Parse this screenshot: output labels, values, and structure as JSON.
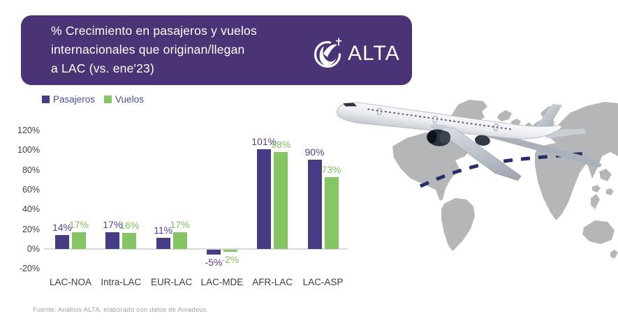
{
  "header": {
    "title_lines": [
      "% Crecimiento en pasajeros y vuelos",
      "internacionales que originan/llegan",
      "a LAC (vs. ene'23)"
    ],
    "logo_text": "ALTA"
  },
  "legend": [
    {
      "label": "Pasajeros",
      "color": "#453c85"
    },
    {
      "label": "Vuelos",
      "color": "#84c664"
    }
  ],
  "chart_data": {
    "type": "bar",
    "title": "% Crecimiento en pasajeros y vuelos internacionales que originan/llegan a LAC (vs. ene'23)",
    "categories": [
      "LAC-NOA",
      "Intra-LAC",
      "EUR-LAC",
      "LAC-MDE",
      "AFR-LAC",
      "LAC-ASP"
    ],
    "series": [
      {
        "name": "Pasajeros",
        "color": "#453c85",
        "label_color": "#5c3d99",
        "values": [
          14,
          17,
          11,
          -5,
          101,
          90
        ]
      },
      {
        "name": "Vuelos",
        "color": "#84c664",
        "label_color": "#7cc05b",
        "values": [
          17,
          16,
          17,
          -2,
          98,
          73
        ]
      }
    ],
    "yticks": [
      120,
      100,
      80,
      60,
      40,
      20,
      0,
      -20
    ],
    "ylim": [
      -20,
      120
    ],
    "ytick_format": "{v}%",
    "value_label_format": "{v}%",
    "grid": false,
    "legend_position": "top-left"
  },
  "footer": {
    "source": "Fuente: Análisis ALTA, elaborado con datos de Amadeus"
  },
  "icons": {
    "logo": "globe-swoosh-plane-icon",
    "illustrations": [
      "world-map-silhouette",
      "airliner-3d",
      "dashed-flight-path"
    ]
  },
  "colors": {
    "header_bg": "#4a3475",
    "legend_text": "#484c9c",
    "axis_text": "#3e3e3e",
    "axis_line": "#d8d8d8",
    "map_gray": "#b4b6b8",
    "flight_path_navy": "#252e6b",
    "source_text": "#9ba3ab"
  }
}
